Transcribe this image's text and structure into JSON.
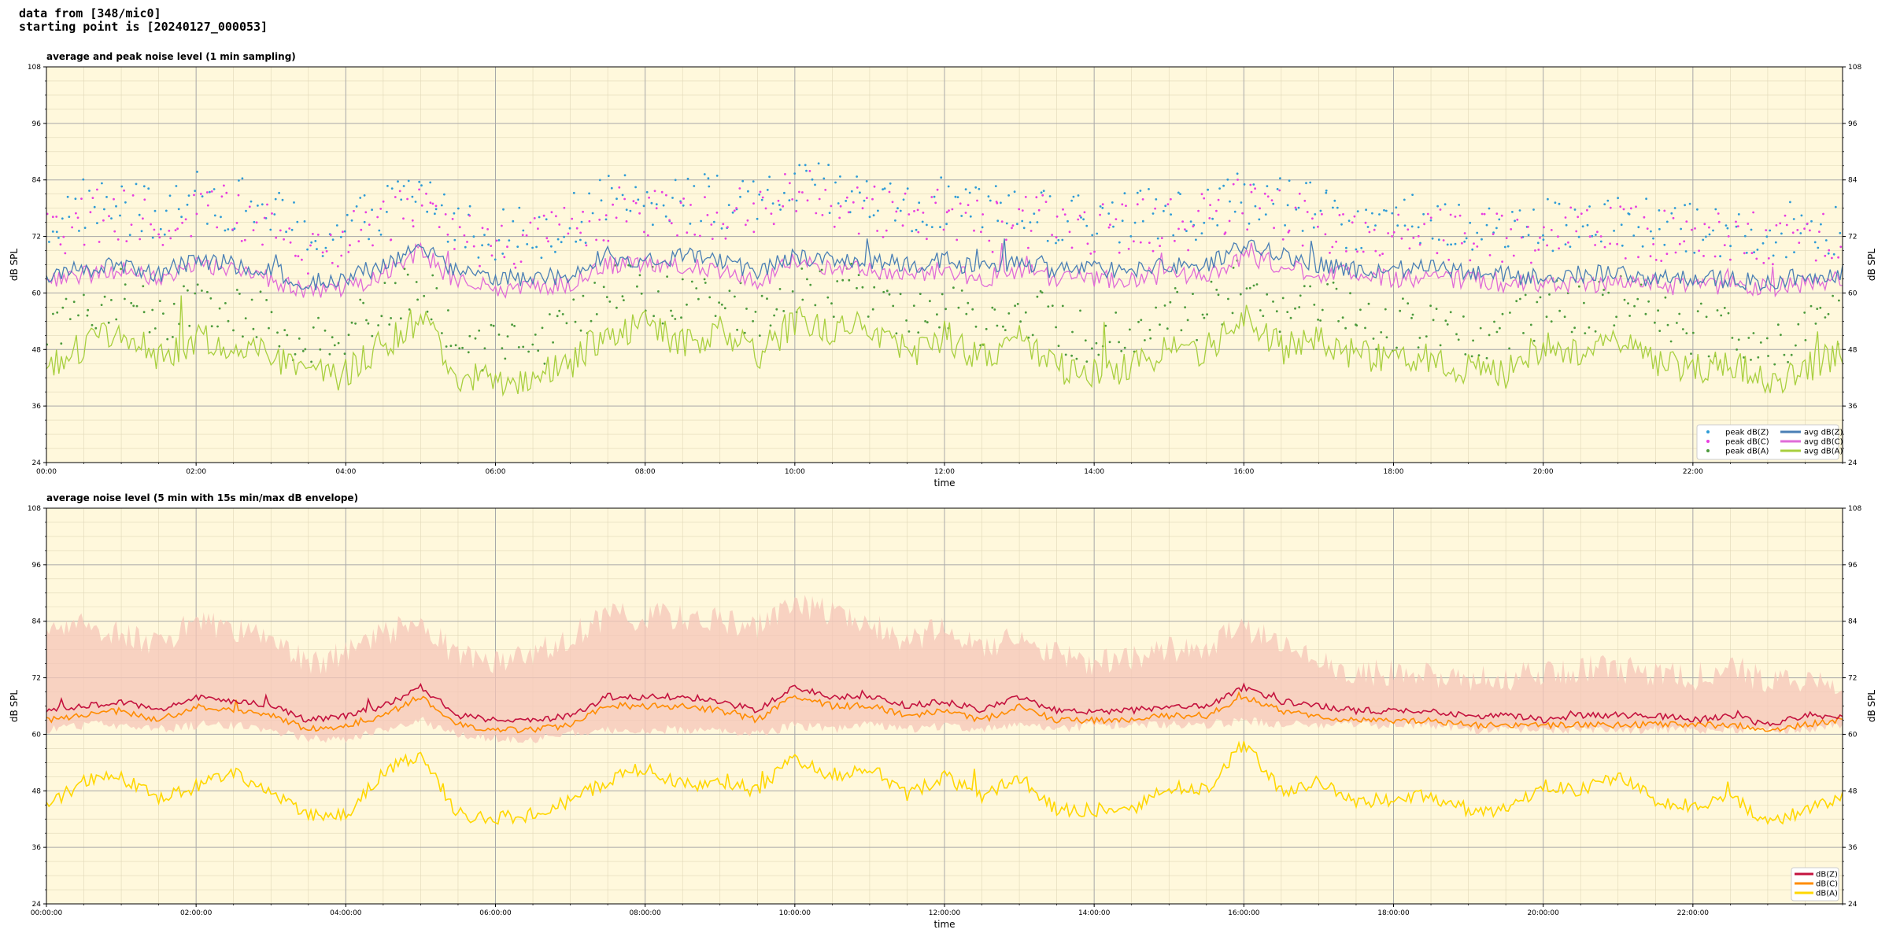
{
  "header": {
    "line1": "data from [348/mic0]",
    "line2": "starting point is [20240127_000053]"
  },
  "colors": {
    "plot_bg": "#fff8dc",
    "peak_z": "#2e9bd6",
    "peak_c": "#e83ee0",
    "peak_a": "#4c9a3c",
    "avg_z": "#4a7fb5",
    "avg_c": "#e06bd8",
    "avg_a": "#a8cf3e",
    "env_fill": "#f6c6b8",
    "db_z": "#c4123e",
    "db_c": "#ff8c00",
    "db_a": "#ffd700"
  },
  "chart_data": [
    {
      "type": "line",
      "title": "average and peak noise level (1 min sampling)",
      "xlabel": "time",
      "ylabel": "dB SPL",
      "ylim": [
        24,
        108
      ],
      "yticks": [
        24,
        36,
        48,
        60,
        72,
        84,
        96,
        108
      ],
      "xlim": [
        0,
        24
      ],
      "xticks": [
        0,
        2,
        4,
        6,
        8,
        10,
        12,
        14,
        16,
        18,
        20,
        22
      ],
      "xtick_labels": [
        "00:00",
        "02:00",
        "04:00",
        "06:00",
        "08:00",
        "10:00",
        "12:00",
        "14:00",
        "16:00",
        "18:00",
        "20:00",
        "22:00"
      ],
      "grid": true,
      "legend_position": "lower-right",
      "legend": [
        {
          "label": "peak dB(Z)",
          "kind": "marker",
          "color": "#2e9bd6"
        },
        {
          "label": "peak dB(C)",
          "kind": "marker",
          "color": "#e83ee0"
        },
        {
          "label": "peak dB(A)",
          "kind": "marker",
          "color": "#4c9a3c"
        },
        {
          "label": "avg dB(Z)",
          "kind": "line",
          "color": "#4a7fb5"
        },
        {
          "label": "avg dB(C)",
          "kind": "line",
          "color": "#e06bd8"
        },
        {
          "label": "avg dB(A)",
          "kind": "line",
          "color": "#a8cf3e"
        }
      ],
      "x": [
        0,
        0.5,
        1,
        1.5,
        2,
        2.5,
        3,
        3.5,
        4,
        4.5,
        5,
        5.5,
        6,
        6.5,
        7,
        7.5,
        8,
        8.5,
        9,
        9.5,
        10,
        10.5,
        11,
        11.5,
        12,
        12.5,
        13,
        13.5,
        14,
        14.5,
        15,
        15.5,
        16,
        16.5,
        17,
        17.5,
        18,
        18.5,
        19,
        19.5,
        20,
        20.5,
        21,
        21.5,
        22,
        22.5,
        23,
        23.5,
        24
      ],
      "series": [
        {
          "name": "avg dB(Z)",
          "values": [
            64,
            65,
            66,
            64,
            67,
            66,
            65,
            62,
            63,
            66,
            70,
            64,
            63,
            63,
            64,
            68,
            67,
            68,
            67,
            64,
            68,
            67,
            67,
            66,
            67,
            65,
            66,
            65,
            65,
            65,
            66,
            66,
            70,
            68,
            66,
            65,
            65,
            65,
            64,
            64,
            63,
            64,
            64,
            63,
            63,
            63,
            62,
            64,
            64
          ],
          "style": "line",
          "color": "#4a7fb5"
        },
        {
          "name": "avg dB(C)",
          "values": [
            62,
            64,
            65,
            63,
            66,
            65,
            63,
            60,
            61,
            64,
            69,
            62,
            61,
            61,
            62,
            66,
            66,
            66,
            65,
            62,
            67,
            65,
            65,
            64,
            65,
            63,
            65,
            63,
            63,
            63,
            64,
            64,
            68,
            66,
            64,
            64,
            63,
            63,
            63,
            62,
            62,
            62,
            62,
            62,
            61,
            62,
            61,
            62,
            63
          ],
          "style": "line",
          "color": "#e06bd8"
        },
        {
          "name": "avg dB(A)",
          "values": [
            45,
            49,
            52,
            46,
            50,
            49,
            47,
            42,
            43,
            49,
            55,
            42,
            41,
            42,
            45,
            52,
            53,
            49,
            52,
            47,
            54,
            52,
            53,
            47,
            51,
            46,
            50,
            44,
            43,
            44,
            48,
            48,
            56,
            48,
            50,
            47,
            45,
            46,
            44,
            43,
            49,
            48,
            51,
            46,
            44,
            45,
            41,
            44,
            47
          ],
          "style": "line",
          "color": "#a8cf3e"
        },
        {
          "name": "peak dB(Z)",
          "values": [
            74,
            79,
            78,
            76,
            80,
            79,
            77,
            72,
            73,
            78,
            82,
            74,
            73,
            73,
            75,
            79,
            80,
            81,
            79,
            78,
            83,
            81,
            80,
            77,
            79,
            76,
            78,
            76,
            76,
            76,
            77,
            77,
            81,
            79,
            77,
            75,
            75,
            75,
            74,
            74,
            74,
            75,
            75,
            74,
            73,
            74,
            73,
            74,
            74
          ],
          "style": "markers",
          "color": "#2e9bd6"
        },
        {
          "name": "peak dB(C)",
          "values": [
            72,
            76,
            76,
            74,
            78,
            77,
            75,
            70,
            71,
            76,
            80,
            72,
            71,
            71,
            73,
            77,
            78,
            78,
            77,
            76,
            81,
            79,
            78,
            75,
            77,
            74,
            76,
            74,
            74,
            74,
            75,
            75,
            79,
            77,
            75,
            73,
            73,
            73,
            72,
            72,
            72,
            73,
            73,
            72,
            71,
            72,
            71,
            72,
            72
          ],
          "style": "markers",
          "color": "#e83ee0"
        },
        {
          "name": "peak dB(A)",
          "values": [
            52,
            57,
            60,
            54,
            58,
            57,
            55,
            49,
            50,
            57,
            62,
            50,
            49,
            50,
            53,
            60,
            61,
            57,
            60,
            55,
            62,
            60,
            61,
            55,
            59,
            54,
            58,
            52,
            51,
            52,
            56,
            56,
            63,
            56,
            58,
            55,
            53,
            54,
            52,
            51,
            57,
            56,
            59,
            54,
            52,
            53,
            49,
            52,
            55
          ],
          "style": "markers",
          "color": "#4c9a3c"
        }
      ]
    },
    {
      "type": "line",
      "title": "average noise level (5 min with 15s min/max dB envelope)",
      "xlabel": "time",
      "ylabel": "dB SPL",
      "ylim": [
        24,
        108
      ],
      "yticks": [
        24,
        36,
        48,
        60,
        72,
        84,
        96,
        108
      ],
      "xlim": [
        0,
        24
      ],
      "xticks": [
        0,
        2,
        4,
        6,
        8,
        10,
        12,
        14,
        16,
        18,
        20,
        22
      ],
      "xtick_labels": [
        "00:00:00",
        "02:00:00",
        "04:00:00",
        "06:00:00",
        "08:00:00",
        "10:00:00",
        "12:00:00",
        "14:00:00",
        "16:00:00",
        "18:00:00",
        "20:00:00",
        "22:00:00"
      ],
      "grid": true,
      "legend_position": "lower-right",
      "legend": [
        {
          "label": "dB(Z)",
          "kind": "line",
          "color": "#c4123e"
        },
        {
          "label": "dB(C)",
          "kind": "line",
          "color": "#ff8c00"
        },
        {
          "label": "dB(A)",
          "kind": "line",
          "color": "#ffd700"
        }
      ],
      "x": [
        0,
        0.5,
        1,
        1.5,
        2,
        2.5,
        3,
        3.5,
        4,
        4.5,
        5,
        5.5,
        6,
        6.5,
        7,
        7.5,
        8,
        8.5,
        9,
        9.5,
        10,
        10.5,
        11,
        11.5,
        12,
        12.5,
        13,
        13.5,
        14,
        14.5,
        15,
        15.5,
        16,
        16.5,
        17,
        17.5,
        18,
        18.5,
        19,
        19.5,
        20,
        20.5,
        21,
        21.5,
        22,
        22.5,
        23,
        23.5,
        24
      ],
      "envelope": {
        "upper": [
          80,
          82,
          80,
          78,
          83,
          81,
          79,
          74,
          76,
          81,
          82,
          76,
          74,
          76,
          80,
          84,
          84,
          84,
          83,
          82,
          87,
          85,
          83,
          79,
          82,
          78,
          80,
          76,
          74,
          75,
          77,
          78,
          82,
          78,
          75,
          72,
          72,
          72,
          71,
          71,
          72,
          73,
          73,
          72,
          71,
          74,
          70,
          70,
          70
        ],
        "lower": [
          61,
          62,
          62,
          61,
          62,
          62,
          61,
          59,
          59,
          61,
          63,
          60,
          59,
          59,
          60,
          61,
          61,
          61,
          61,
          60,
          62,
          61,
          62,
          61,
          62,
          61,
          62,
          61,
          62,
          62,
          62,
          62,
          63,
          62,
          62,
          62,
          62,
          62,
          61,
          61,
          61,
          61,
          61,
          61,
          61,
          61,
          61,
          61,
          62
        ]
      },
      "series": [
        {
          "name": "dB(Z)",
          "values": [
            65,
            66,
            67,
            65,
            68,
            67,
            66,
            63,
            64,
            66,
            70,
            64,
            63,
            63,
            64,
            68,
            68,
            68,
            67,
            65,
            70,
            68,
            68,
            66,
            67,
            65,
            68,
            65,
            65,
            65,
            66,
            66,
            70,
            67,
            66,
            65,
            65,
            65,
            64,
            64,
            63,
            64,
            64,
            64,
            63,
            64,
            62,
            64,
            64
          ],
          "color": "#c4123e"
        },
        {
          "name": "dB(C)",
          "values": [
            63,
            64,
            65,
            63,
            66,
            65,
            64,
            61,
            62,
            64,
            68,
            62,
            61,
            61,
            62,
            66,
            66,
            66,
            65,
            63,
            68,
            66,
            66,
            64,
            65,
            63,
            66,
            63,
            63,
            63,
            64,
            64,
            68,
            65,
            64,
            63,
            63,
            63,
            62,
            62,
            62,
            62,
            62,
            62,
            62,
            62,
            61,
            62,
            63
          ],
          "color": "#ff8c00"
        },
        {
          "name": "dB(A)",
          "values": [
            45,
            50,
            51,
            46,
            49,
            52,
            47,
            43,
            43,
            52,
            56,
            43,
            42,
            43,
            46,
            50,
            53,
            49,
            50,
            48,
            55,
            51,
            53,
            47,
            51,
            47,
            51,
            44,
            44,
            44,
            49,
            48,
            58,
            48,
            50,
            46,
            46,
            47,
            44,
            44,
            49,
            48,
            51,
            46,
            44,
            47,
            41,
            44,
            47
          ],
          "color": "#ffd700"
        }
      ]
    }
  ]
}
